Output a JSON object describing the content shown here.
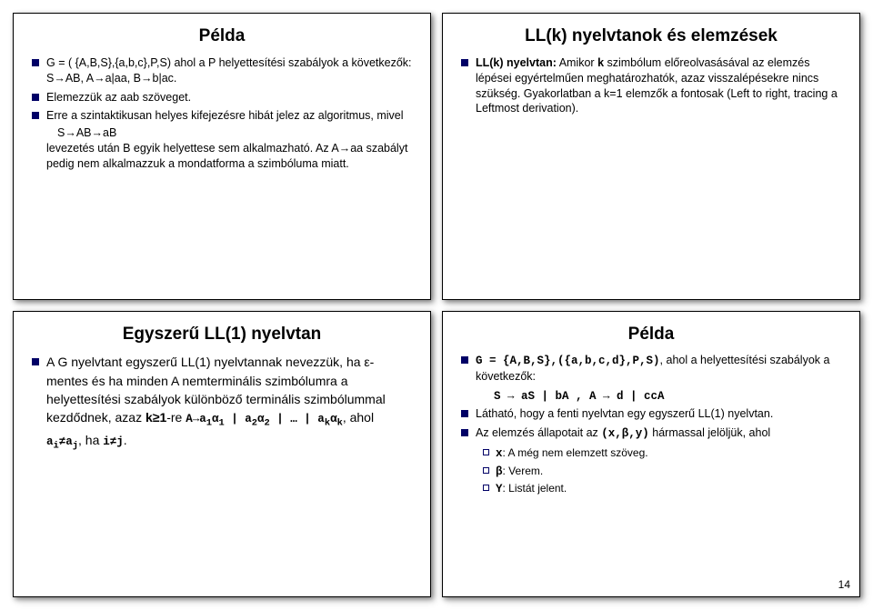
{
  "pageNumber": "14",
  "slides": [
    {
      "title": "Példa",
      "bullets": [
        {
          "text": "G = ( {A,B,S},{a,b,c},P,S) ahol a P helyettesítési szabályok a következők:   S→AB, A→a|aa, B→b|ac."
        },
        {
          "text": "Elemezzük az aab szöveget."
        },
        {
          "text": "Erre a szintaktikusan helyes kifejezésre hibát jelez az algoritmus, mivel",
          "indented": [
            "S→AB→aB"
          ],
          "cont": "levezetés után B egyik helyettese sem alkalmazható. Az A→aa szabályt pedig nem alkalmazzuk a mondatforma a szimbóluma miatt."
        }
      ]
    },
    {
      "title": "LL(k) nyelvtanok és elemzések",
      "bullets": [
        {
          "html": "<b>LL(k) nyelvtan:</b> Amikor <b>k</b> szimbólum előreolvasásával az elemzés lépései egyértelműen meghatározhatók, azaz visszalépésekre nincs szükség. Gyakorlatban a k=1 elemzők a fontosak (Left to right, tracing a Leftmost derivation)."
        }
      ]
    },
    {
      "title": "Egyszerű LL(1) nyelvtan",
      "bullets": [
        {
          "html": "A G nyelvtant egyszerű LL(1) nyelvtannak nevezzük, ha ε-mentes és ha minden A nemterminális szimbólumra a helyettesítési szabályok különböző terminális szimbólummal kezdődnek, azaz <b>k≥1</b>-re <span class='mono'>A→a<sub>1</sub>α<sub>1</sub> | a<sub>2</sub>α<sub>2</sub> | … | a<sub>k</sub>α<sub>k</sub></span>, ahol <span class='mono'>a<sub>i</sub>≠a<sub>j</sub></span>, ha <span class='mono'>i≠j</span>."
        }
      ]
    },
    {
      "title": "Példa",
      "bulletsMixed": [
        {
          "type": "bullet",
          "html": "<span class='mono'>G = {A,B,S},({a,b,c,d},P,S)</span>, ahol a helyettesítési szabályok a következők:"
        },
        {
          "type": "indent",
          "html": "<span class='mono'>S → aS | bA , A → d | ccA</span>"
        },
        {
          "type": "bullet",
          "html": "Látható, hogy a fenti nyelvtan egy egyszerű LL(1) nyelvtan."
        },
        {
          "type": "bullet",
          "html": "Az elemzés állapotait az <span class='mono'>(x,β,y)</span> hármassal jelöljük, ahol"
        },
        {
          "type": "sub",
          "html": "<span class='mono'>x</span>: A még nem elemzett szöveg."
        },
        {
          "type": "sub",
          "html": "<span class='mono'>β</span>: Verem."
        },
        {
          "type": "sub",
          "html": "<span class='mono'>Y</span>: Listát jelent."
        }
      ]
    }
  ]
}
